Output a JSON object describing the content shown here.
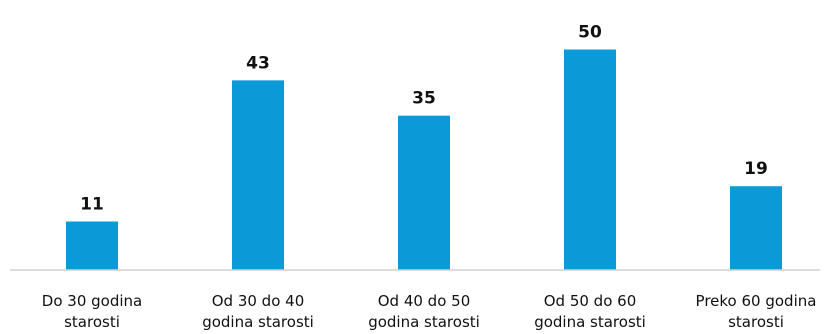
{
  "chart_data": {
    "type": "bar",
    "categories": [
      [
        "Do 30 godina",
        "starosti"
      ],
      [
        "Od 30 do 40",
        "godina starosti"
      ],
      [
        "Od 40 do 50",
        "godina starosti"
      ],
      [
        "Od 50 do 60",
        "godina starosti"
      ],
      [
        "Preko 60 godina",
        "starosti"
      ]
    ],
    "values": [
      11,
      43,
      35,
      50,
      19
    ],
    "data_labels": [
      "11",
      "43",
      "35",
      "50",
      "19"
    ],
    "ylim": [
      0,
      50
    ],
    "grid": false,
    "legend": "none",
    "bar_color": "#0a9ad8"
  }
}
